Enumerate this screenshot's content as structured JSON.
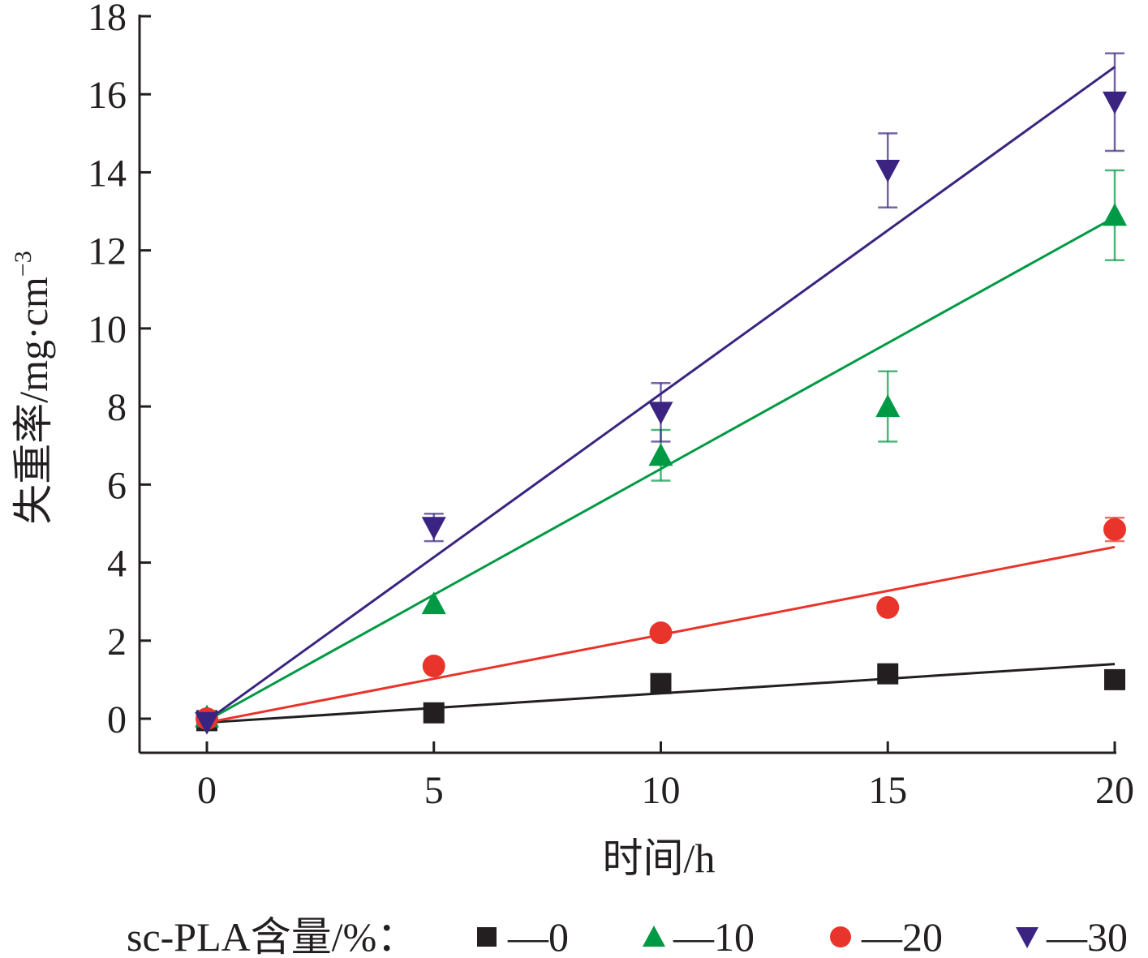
{
  "chart_data": {
    "type": "scatter",
    "xlabel": "时间/h",
    "ylabel": "失重率/mg·cm",
    "ylabel_sup": "−3",
    "xlim": [
      -1.5,
      20
    ],
    "ylim": [
      -0.9,
      18
    ],
    "xticks": [
      0,
      5,
      10,
      15,
      20
    ],
    "yticks": [
      0,
      2,
      4,
      6,
      8,
      10,
      12,
      14,
      16,
      18
    ],
    "grid": false,
    "legend_position": "bottom",
    "legend_title": "sc-PLA含量/%：",
    "series": [
      {
        "name": "0",
        "legend_label": "—0",
        "marker": "square",
        "color": "#231f20",
        "x": [
          0,
          5,
          10,
          15,
          20
        ],
        "y": [
          -0.05,
          0.15,
          0.9,
          1.15,
          1.0
        ],
        "err": [
          0,
          0,
          0,
          0,
          0
        ],
        "fit": {
          "x": [
            0,
            20
          ],
          "y": [
            -0.1,
            1.4
          ]
        }
      },
      {
        "name": "10",
        "legend_label": "—10",
        "marker": "triangle-up",
        "color": "#009944",
        "x": [
          0,
          5,
          10,
          15,
          20
        ],
        "y": [
          0.05,
          2.95,
          6.75,
          8.0,
          12.9
        ],
        "err": [
          0,
          0,
          0.65,
          0.9,
          1.15
        ],
        "fit": {
          "x": [
            0,
            20
          ],
          "y": [
            -0.05,
            12.85
          ]
        }
      },
      {
        "name": "20",
        "legend_label": "—20",
        "marker": "circle",
        "color": "#e8342a",
        "x": [
          0,
          5,
          10,
          15,
          20
        ],
        "y": [
          0.0,
          1.35,
          2.2,
          2.85,
          4.85
        ],
        "err": [
          0,
          0,
          0,
          0,
          0.3
        ],
        "fit": {
          "x": [
            0,
            20
          ],
          "y": [
            -0.1,
            4.4
          ]
        }
      },
      {
        "name": "30",
        "legend_label": "—30",
        "marker": "triangle-down",
        "color": "#3b2481",
        "x": [
          0,
          5,
          10,
          15,
          20
        ],
        "y": [
          -0.1,
          4.9,
          7.85,
          14.05,
          15.8
        ],
        "err": [
          0,
          0.35,
          0.75,
          0.95,
          1.25
        ],
        "fit": {
          "x": [
            0,
            20
          ],
          "y": [
            -0.05,
            16.7
          ]
        }
      }
    ]
  }
}
